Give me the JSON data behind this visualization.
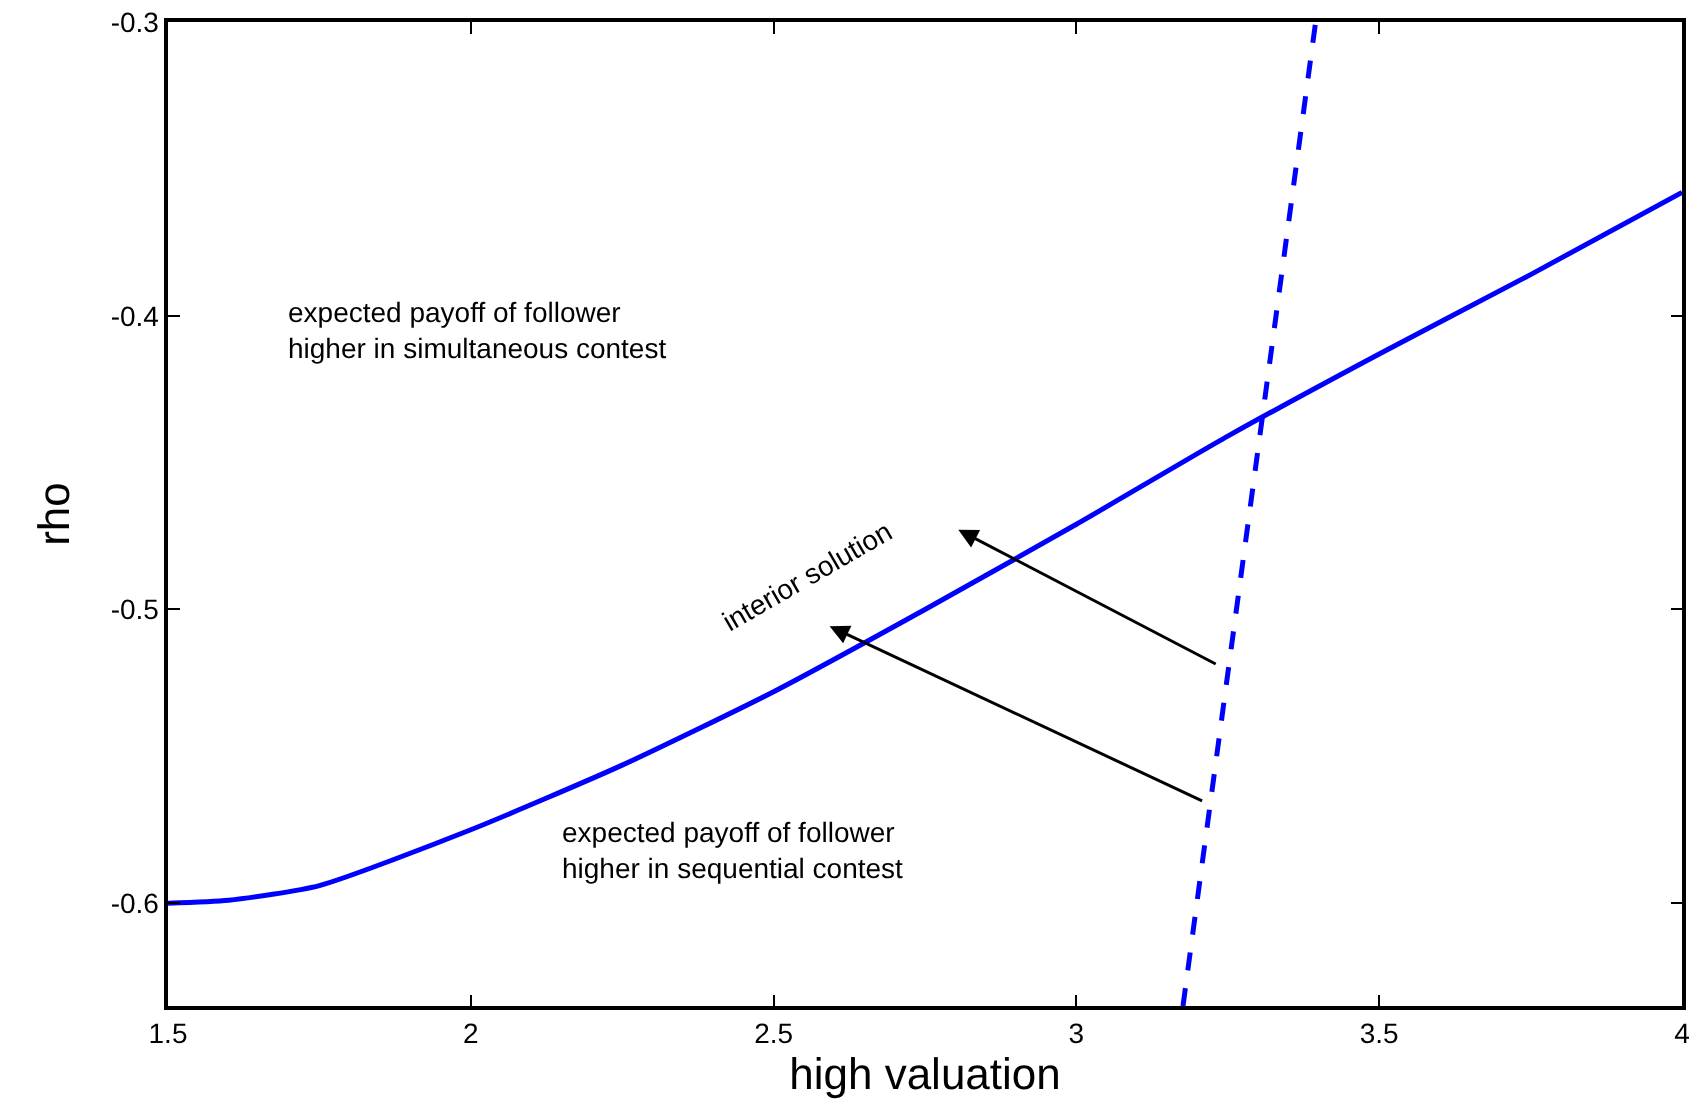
{
  "chart_data": {
    "type": "line",
    "xlabel": "high valuation",
    "ylabel": "rho",
    "xlim": [
      1.5,
      4
    ],
    "ylim": [
      -0.635,
      -0.3
    ],
    "xticks": [
      1.5,
      2,
      2.5,
      3,
      3.5,
      4
    ],
    "yticks": [
      -0.6,
      -0.5,
      -0.4,
      -0.3
    ],
    "marker": "none",
    "series": [
      {
        "color": "#0000ff",
        "line_style": "solid",
        "x": [
          1.5,
          1.6,
          1.75,
          2,
          2.25,
          2.5,
          2.75,
          3,
          3.25,
          3.5,
          3.75,
          4
        ],
        "values": [
          -0.6,
          -0.599,
          -0.594,
          -0.575,
          -0.553,
          -0.528,
          -0.5,
          -0.471,
          -0.441,
          -0.413,
          -0.386,
          -0.358
        ]
      },
      {
        "color": "#0000ff",
        "line_style": "dashed",
        "x": [
          3.176,
          3.395
        ],
        "values": [
          -0.635,
          -0.3
        ]
      }
    ],
    "annotations": [
      "expected payoff of follower\nhigher in simultaneous contest",
      "expected payoff of follower\nhigher in sequential contest",
      "interior solution"
    ]
  }
}
